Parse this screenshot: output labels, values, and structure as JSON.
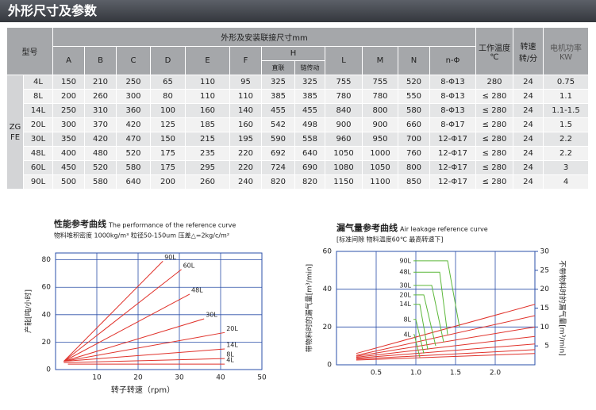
{
  "header": {
    "title": "外形尺寸及参数"
  },
  "table": {
    "model_label": "型号",
    "dims_label": "外形及安装联接尺寸mm",
    "columns": [
      "A",
      "B",
      "C",
      "D",
      "E",
      "F",
      "H",
      "L",
      "M",
      "N",
      "n-Φ"
    ],
    "h_sub": [
      "直联",
      "链传动"
    ],
    "temp_label": "工作温度\n℃",
    "speed_label": "转速\n转/分",
    "power_label": "电机功率\nKW",
    "series": "ZGFE",
    "rows": [
      [
        "4L",
        "150",
        "210",
        "250",
        "65",
        "110",
        "95",
        "325",
        "325",
        "755",
        "755",
        "520",
        "8-Φ13",
        "280",
        "24",
        "0.75"
      ],
      [
        "8L",
        "200",
        "260",
        "300",
        "80",
        "110",
        "110",
        "385",
        "385",
        "780",
        "780",
        "550",
        "8-Φ13",
        "≤ 280",
        "24",
        "1.1"
      ],
      [
        "14L",
        "250",
        "310",
        "360",
        "100",
        "160",
        "140",
        "455",
        "455",
        "840",
        "800",
        "580",
        "8-Φ13",
        "≤ 280",
        "24",
        "1.1-1.5"
      ],
      [
        "20L",
        "300",
        "370",
        "420",
        "125",
        "185",
        "160",
        "542",
        "498",
        "900",
        "900",
        "660",
        "8-Φ17",
        "≤ 280",
        "24",
        "1.5"
      ],
      [
        "30L",
        "350",
        "420",
        "470",
        "150",
        "215",
        "195",
        "590",
        "558",
        "960",
        "950",
        "700",
        "12-Φ17",
        "≤ 280",
        "24",
        "2.2"
      ],
      [
        "48L",
        "400",
        "480",
        "520",
        "175",
        "235",
        "220",
        "692",
        "640",
        "1050",
        "1000",
        "760",
        "12-Φ17",
        "≤ 280",
        "24",
        "2.2"
      ],
      [
        "60L",
        "450",
        "520",
        "580",
        "175",
        "295",
        "220",
        "724",
        "690",
        "1080",
        "1050",
        "800",
        "12-Φ17",
        "≤ 280",
        "24",
        "3"
      ],
      [
        "90L",
        "500",
        "580",
        "640",
        "200",
        "260",
        "240",
        "820",
        "820",
        "1150",
        "1100",
        "850",
        "12-Φ17",
        "≤ 280",
        "24",
        "4"
      ]
    ]
  },
  "chart_data": [
    {
      "type": "line",
      "title": "性能参考曲线",
      "title_en": "The performance of the reference curve",
      "subtitle": "物料堆积密度 1000kg/m³ 粒径50-150um 压差△=2kg/c/m²",
      "x_label": "转子转速（rpm）",
      "y_label": "产能[吨/小时]",
      "xlim": [
        0,
        50
      ],
      "ylim": [
        0,
        85
      ],
      "xticks": [
        10,
        20,
        30,
        40,
        50
      ],
      "yticks": [
        0,
        20,
        40,
        60,
        80
      ],
      "grid": true,
      "series": [
        {
          "name": "90L",
          "color": "#e0322b",
          "x": [
            2,
            26
          ],
          "values": [
            6,
            79
          ]
        },
        {
          "name": "60L",
          "color": "#e0322b",
          "x": [
            2,
            30.5
          ],
          "values": [
            6,
            73
          ]
        },
        {
          "name": "48L",
          "color": "#e0322b",
          "x": [
            2,
            32.5
          ],
          "values": [
            6,
            55
          ]
        },
        {
          "name": "30L",
          "color": "#e0322b",
          "x": [
            2,
            36
          ],
          "values": [
            6,
            37
          ]
        },
        {
          "name": "20L",
          "color": "#e0322b",
          "x": [
            2,
            41
          ],
          "values": [
            6,
            27
          ]
        },
        {
          "name": "14L",
          "color": "#e0322b",
          "x": [
            2,
            41
          ],
          "values": [
            6,
            15
          ]
        },
        {
          "name": "8L",
          "color": "#e0322b",
          "x": [
            2,
            41
          ],
          "values": [
            5,
            8
          ]
        },
        {
          "name": "4L",
          "color": "#e0322b",
          "x": [
            3,
            41
          ],
          "values": [
            4,
            4
          ]
        }
      ]
    },
    {
      "type": "line",
      "title": "漏气量参考曲线",
      "title_en": "Air leakage reference curve",
      "subtitle": "[标准间隙 物料温度60℃ 最高转速下]",
      "y_label": "带物料时的漏气量[m³/min]",
      "y2_label": "不带物料时的漏气量[m³/min]",
      "xlim": [
        0,
        2.5
      ],
      "ylim": [
        0,
        60
      ],
      "y2lim": [
        0,
        30
      ],
      "xticks": [
        0.5,
        {
          "value": 1,
          "label": "1.0"
        },
        1.5,
        {
          "value": 2,
          "label": "2.0"
        }
      ],
      "yticks": [
        0,
        20,
        40,
        60
      ],
      "y2ticks": [
        5,
        10,
        15,
        20,
        25,
        30
      ],
      "grid": true,
      "series": [
        {
          "color": "#e0322b",
          "x": [
            0.25,
            2.5
          ],
          "values": [
            6,
            32
          ]
        },
        {
          "color": "#e0322b",
          "x": [
            0.25,
            2.5
          ],
          "values": [
            5,
            26
          ]
        },
        {
          "color": "#e0322b",
          "x": [
            0.25,
            2.5
          ],
          "values": [
            4.5,
            20
          ]
        },
        {
          "color": "#e0322b",
          "x": [
            0.25,
            2.5
          ],
          "values": [
            4,
            15
          ]
        },
        {
          "color": "#e0322b",
          "x": [
            0.25,
            2.5
          ],
          "values": [
            3.5,
            11
          ]
        },
        {
          "color": "#e0322b",
          "x": [
            0.25,
            2.5
          ],
          "values": [
            3,
            8
          ]
        },
        {
          "color": "#e0322b",
          "x": [
            0.25,
            2.5
          ],
          "values": [
            2.5,
            6
          ]
        },
        {
          "name": "90L",
          "color": "#5cb83a",
          "axis": "y2",
          "x": [
            0.97,
            1.4,
            1.55
          ],
          "values": [
            27.5,
            27.5,
            10
          ]
        },
        {
          "name": "48L",
          "color": "#5cb83a",
          "axis": "y2",
          "x": [
            0.97,
            1.3,
            1.4
          ],
          "values": [
            24.5,
            24.5,
            8
          ]
        },
        {
          "name": "30L",
          "color": "#5cb83a",
          "axis": "y2",
          "x": [
            0.97,
            1.2,
            1.35
          ],
          "values": [
            21,
            21,
            6
          ]
        },
        {
          "name": "20L",
          "color": "#5cb83a",
          "axis": "y2",
          "x": [
            0.97,
            1.1,
            1.25
          ],
          "values": [
            18.5,
            18.5,
            5
          ]
        },
        {
          "name": "14L",
          "color": "#5cb83a",
          "axis": "y2",
          "x": [
            0.97,
            1.05,
            1.15
          ],
          "values": [
            16,
            16,
            4
          ]
        },
        {
          "name": "8L",
          "color": "#5cb83a",
          "axis": "y2",
          "x": [
            0.97,
            1.0,
            1.1
          ],
          "values": [
            12,
            12,
            3
          ]
        },
        {
          "name": "4L",
          "color": "#5cb83a",
          "axis": "y2",
          "x": [
            0.97,
            0.98,
            1.05
          ],
          "values": [
            8,
            8,
            2
          ]
        }
      ]
    }
  ]
}
